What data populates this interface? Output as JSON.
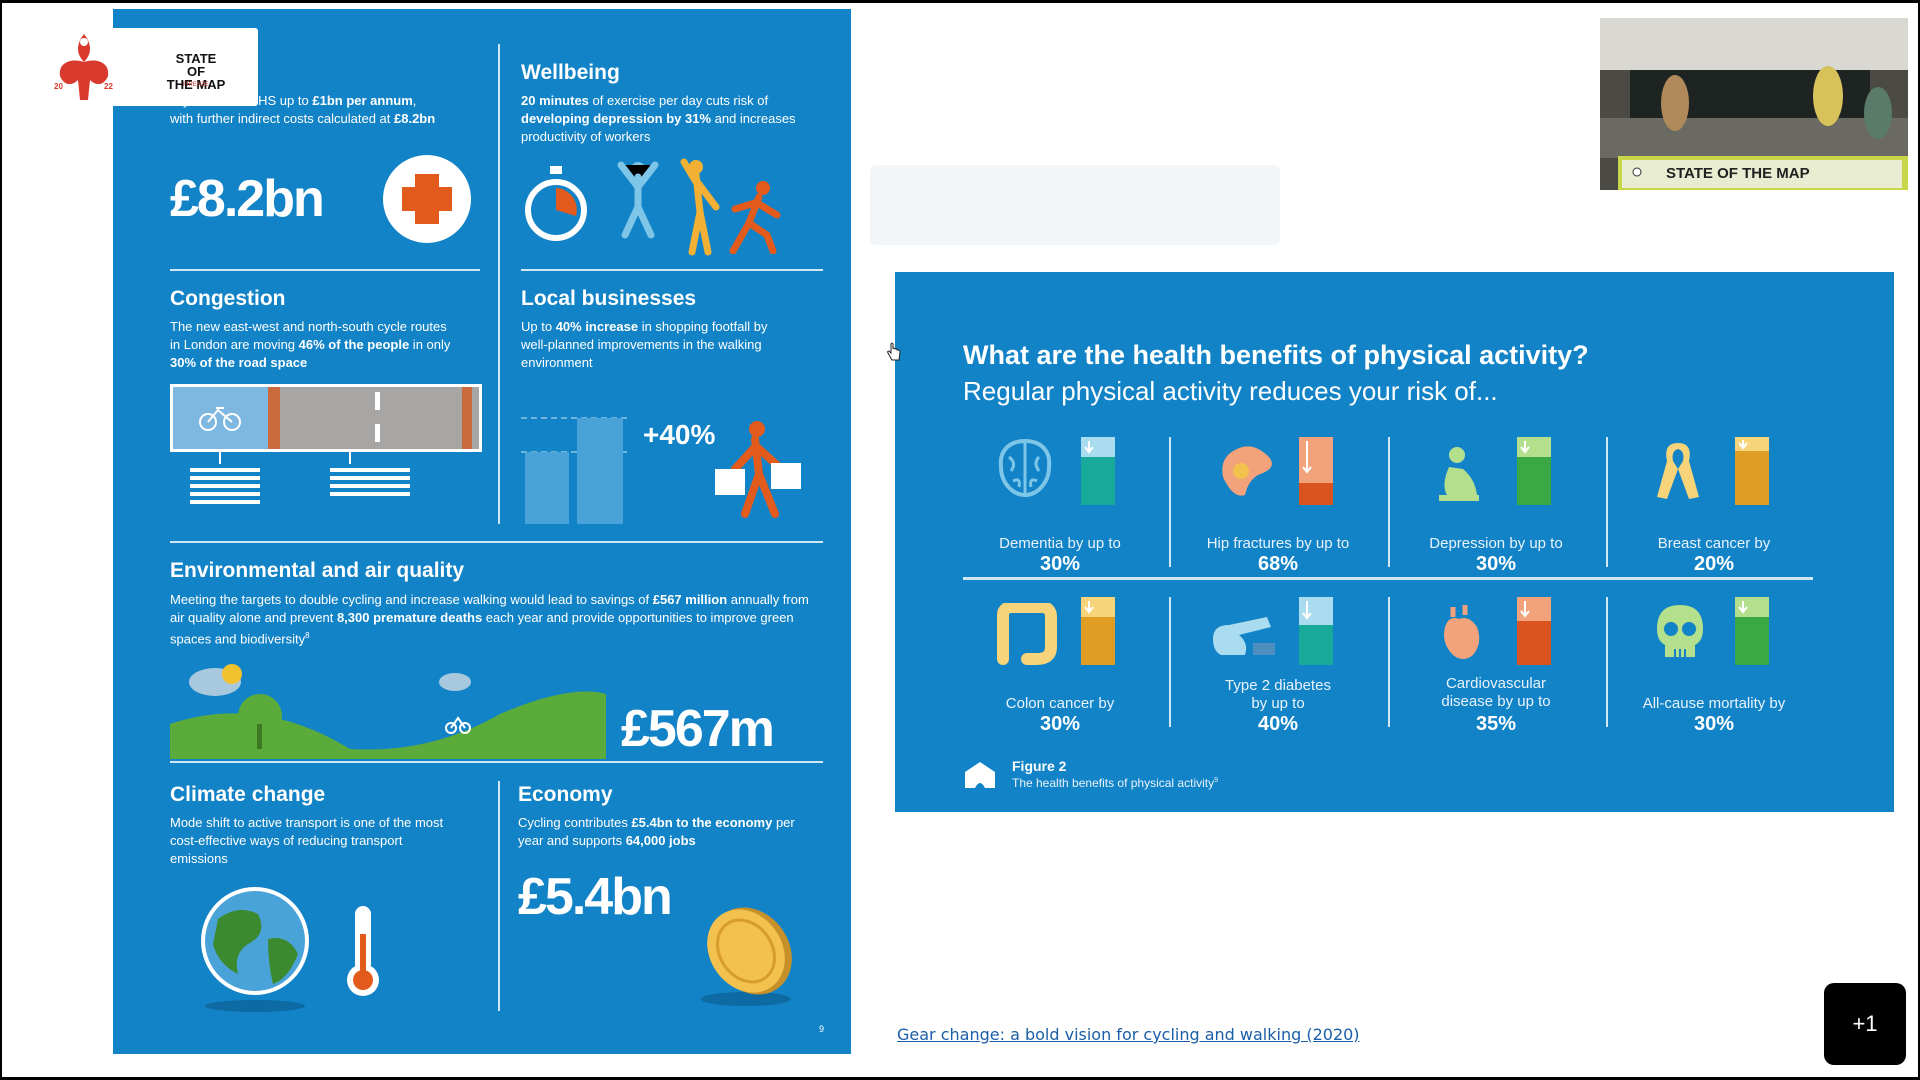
{
  "logo": {
    "line1": "STATE OF",
    "line2": "THE MAP",
    "sub": "FIRENZE",
    "year_left": "20",
    "year_right": "22"
  },
  "infographic": {
    "nhs": {
      "text_plain": "vity costs the NHS up to",
      "text_b1": "£1bn per annum",
      "text_mid": ", with further indirect costs calculated at ",
      "text_b2": "£8.2bn",
      "big": "£8.2bn"
    },
    "wellbeing": {
      "title": "Wellbeing",
      "b1": "20 minutes",
      "t1": " of exercise per day cuts risk of ",
      "b2": "developing depression by 31%",
      "t2": " and increases productivity of workers"
    },
    "congestion": {
      "title": "Congestion",
      "t1": "The new east-west and north-south cycle routes in London are moving ",
      "b1": "46% of the people",
      "t2": " in only ",
      "b2": "30% of the road space"
    },
    "local": {
      "title": "Local businesses",
      "t1": "Up to ",
      "b1": "40% increase",
      "t2": " in shopping footfall by well-planned improvements in the walking environment",
      "big": "+40%"
    },
    "environment": {
      "title": "Environmental and air quality",
      "t1": "Meeting the targets to double cycling and increase walking would lead to savings of ",
      "b1": "£567 million",
      "t2": " annually from air quality alone and prevent ",
      "b2": "8,300 premature deaths",
      "t3": " each year and provide opportunities to improve green spaces and biodiversity",
      "sup": "8",
      "big": "£567m"
    },
    "climate": {
      "title": "Climate change",
      "text": "Mode shift to active transport is one of the most cost-effective ways of reducing transport emissions"
    },
    "economy": {
      "title": "Economy",
      "t1": "Cycling contributes ",
      "b1": "£5.4bn to the economy",
      "t2": " per year and supports ",
      "b2": "64,000 jobs",
      "big": "£5.4bn"
    },
    "page_num": "9"
  },
  "slide": {
    "title": "What are the health benefits of physical activity?",
    "subtitle": "Regular physical activity reduces your risk of...",
    "tiles": [
      {
        "label": "Dementia by up to",
        "pct": "30%",
        "icon": "brain-icon",
        "color": "#17a99a",
        "level": 0.3
      },
      {
        "label": "Hip fractures by up to",
        "pct": "68%",
        "icon": "hip-icon",
        "color": "#d9541e",
        "level": 0.68
      },
      {
        "label": "Depression by up to",
        "pct": "30%",
        "icon": "depression-icon",
        "color": "#3aa845",
        "level": 0.3
      },
      {
        "label": "Breast cancer by",
        "pct": "20%",
        "icon": "ribbon-icon",
        "color": "#e09d24",
        "level": 0.2
      },
      {
        "label": "Colon cancer by",
        "pct": "30%",
        "icon": "colon-icon",
        "color": "#e09d24",
        "level": 0.3
      },
      {
        "label": "Type 2 diabetes by up to",
        "pct": "40%",
        "icon": "diabetes-icon",
        "color": "#17a99a",
        "level": 0.4
      },
      {
        "label": "Cardiovascular disease by up to",
        "pct": "35%",
        "icon": "heart-icon",
        "color": "#d9541e",
        "level": 0.35
      },
      {
        "label": "All-cause mortality by",
        "pct": "30%",
        "icon": "skull-icon",
        "color": "#3aa845",
        "level": 0.3
      }
    ],
    "figure_title": "Figure 2",
    "figure_caption": "The health benefits of physical activity",
    "figure_sup": "9"
  },
  "webcam": {
    "banner": "STATE OF THE MAP"
  },
  "link_text": "Gear change: a bold vision for cycling and walking (2020)",
  "plus_button": "+1",
  "colors": {
    "infographic_blue": "#1283c6",
    "accent_orange": "#e25b1c",
    "link_blue": "#1a5ea8"
  }
}
